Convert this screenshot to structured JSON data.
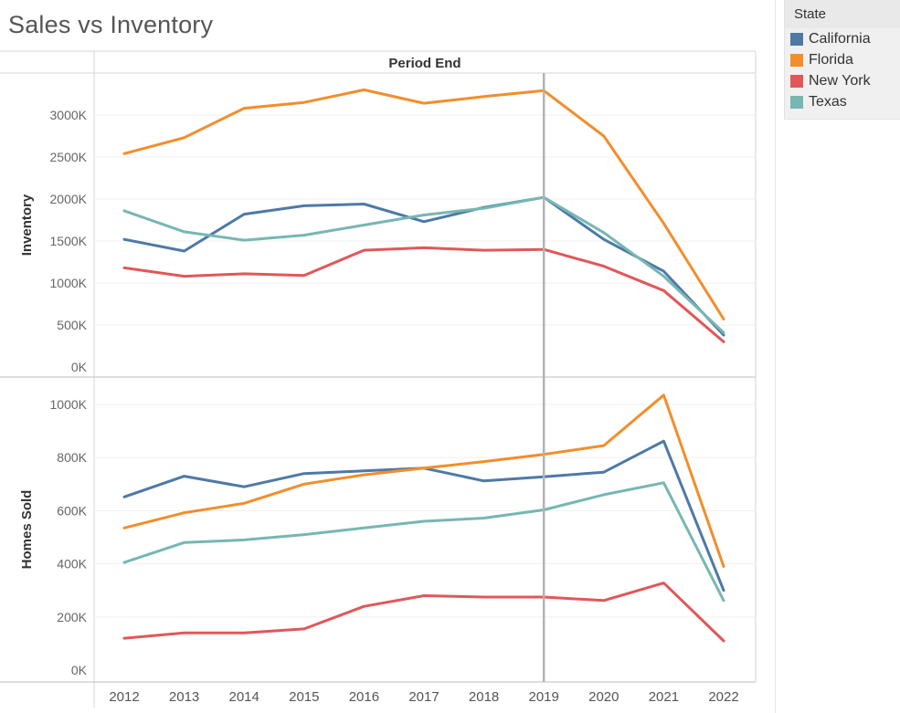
{
  "chart_data": {
    "type": "line",
    "title": "Sales vs Inventory",
    "column_header": "Period End",
    "x": [
      "2012",
      "2013",
      "2014",
      "2015",
      "2016",
      "2017",
      "2018",
      "2019",
      "2020",
      "2021",
      "2022"
    ],
    "reference_line_x": "2019",
    "panels": [
      {
        "ylabel": "Inventory",
        "ylim": [
          0,
          3500000
        ],
        "yticks": [
          0,
          500000,
          1000000,
          1500000,
          2000000,
          2500000,
          3000000
        ],
        "ytick_labels": [
          "0K",
          "500K",
          "1000K",
          "1500K",
          "2000K",
          "2500K",
          "3000K"
        ],
        "series": [
          {
            "name": "California",
            "values": [
              1520000,
              1380000,
              1820000,
              1920000,
              1940000,
              1730000,
              1900000,
              2020000,
              1520000,
              1140000,
              380000
            ]
          },
          {
            "name": "Florida",
            "values": [
              2540000,
              2730000,
              3080000,
              3150000,
              3300000,
              3140000,
              3220000,
              3290000,
              2750000,
              1710000,
              570000
            ]
          },
          {
            "name": "New York",
            "values": [
              1180000,
              1080000,
              1110000,
              1090000,
              1390000,
              1420000,
              1390000,
              1400000,
              1200000,
              910000,
              300000
            ]
          },
          {
            "name": "Texas",
            "values": [
              1860000,
              1610000,
              1510000,
              1570000,
              1690000,
              1810000,
              1890000,
              2020000,
              1600000,
              1080000,
              410000
            ]
          }
        ]
      },
      {
        "ylabel": "Homes Sold",
        "ylim": [
          0,
          1100000
        ],
        "yticks": [
          0,
          200000,
          400000,
          600000,
          800000,
          1000000
        ],
        "ytick_labels": [
          "0K",
          "200K",
          "400K",
          "600K",
          "800K",
          "1000K"
        ],
        "series": [
          {
            "name": "California",
            "values": [
              652000,
              730000,
              690000,
              740000,
              750000,
              760000,
              712000,
              728000,
              745000,
              862000,
              300000
            ]
          },
          {
            "name": "Florida",
            "values": [
              535000,
              592000,
              628000,
              700000,
              735000,
              760000,
              785000,
              812000,
              845000,
              1035000,
              390000
            ]
          },
          {
            "name": "New York",
            "values": [
              120000,
              140000,
              140000,
              155000,
              240000,
              280000,
              275000,
              275000,
              262000,
              328000,
              110000
            ]
          },
          {
            "name": "Texas",
            "values": [
              405000,
              480000,
              490000,
              510000,
              535000,
              560000,
              572000,
              603000,
              660000,
              705000,
              262000
            ]
          }
        ]
      }
    ],
    "legend": {
      "title": "State",
      "placement": "top-right",
      "items": [
        {
          "label": "California",
          "color": "#4e79a7"
        },
        {
          "label": "Florida",
          "color": "#f28e2b"
        },
        {
          "label": "New York",
          "color": "#e15759"
        },
        {
          "label": "Texas",
          "color": "#76b7b2"
        }
      ]
    },
    "grid": true
  }
}
